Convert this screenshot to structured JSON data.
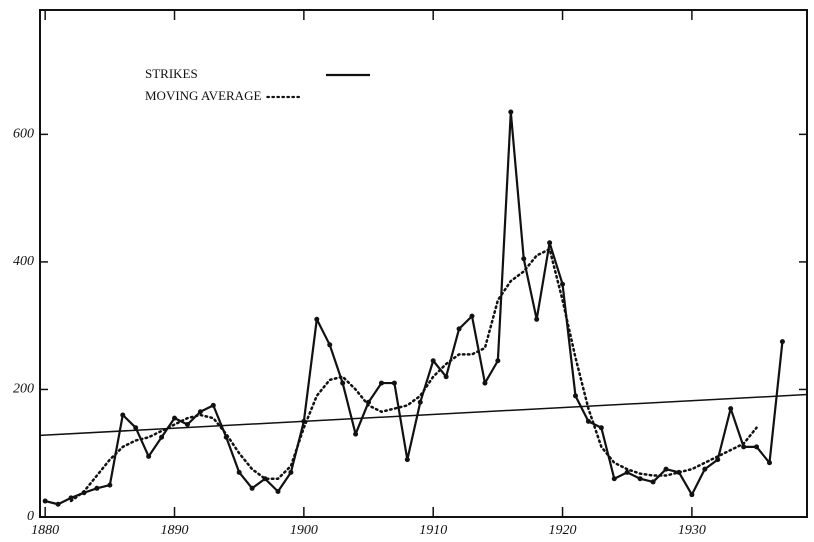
{
  "chart_data": {
    "type": "line",
    "x": [
      1880,
      1881,
      1882,
      1883,
      1884,
      1885,
      1886,
      1887,
      1888,
      1889,
      1890,
      1891,
      1892,
      1893,
      1894,
      1895,
      1896,
      1897,
      1898,
      1899,
      1900,
      1901,
      1902,
      1903,
      1904,
      1905,
      1906,
      1907,
      1908,
      1909,
      1910,
      1911,
      1912,
      1913,
      1914,
      1915,
      1916,
      1917,
      1918,
      1919,
      1920,
      1921,
      1922,
      1923,
      1924,
      1925,
      1926,
      1927,
      1928,
      1929,
      1930,
      1931,
      1932,
      1933,
      1934,
      1935,
      1936,
      1937
    ],
    "series": [
      {
        "name": "STRIKES",
        "color": "#111111",
        "style": "solid",
        "markers": true,
        "values": [
          25,
          20,
          30,
          38,
          45,
          50,
          160,
          140,
          95,
          125,
          155,
          145,
          165,
          175,
          125,
          70,
          45,
          60,
          40,
          70,
          150,
          310,
          270,
          210,
          130,
          180,
          210,
          210,
          90,
          180,
          245,
          220,
          295,
          315,
          210,
          245,
          635,
          405,
          310,
          430,
          365,
          190,
          150,
          140,
          60,
          70,
          60,
          55,
          75,
          70,
          35,
          75,
          90,
          170,
          110,
          110,
          85,
          275
        ]
      },
      {
        "name": "MOVING AVERAGE",
        "color": "#111111",
        "style": "dotted",
        "markers": false,
        "values": [
          null,
          null,
          25,
          40,
          65,
          90,
          110,
          120,
          125,
          135,
          145,
          155,
          160,
          155,
          130,
          100,
          75,
          60,
          60,
          80,
          140,
          190,
          215,
          220,
          200,
          175,
          165,
          170,
          175,
          190,
          220,
          240,
          255,
          255,
          265,
          340,
          370,
          385,
          410,
          420,
          340,
          250,
          170,
          110,
          85,
          75,
          68,
          65,
          65,
          70,
          75,
          85,
          95,
          105,
          115,
          140,
          null,
          null
        ]
      }
    ],
    "trend": {
      "x": [
        1879.6,
        1938.9
      ],
      "values": [
        128,
        192
      ]
    },
    "xlim": [
      1879.6,
      1938.9
    ],
    "xticks": [
      1880,
      1890,
      1900,
      1910,
      1920,
      1930
    ],
    "ylim": [
      0,
      795
    ],
    "yticks": [
      0,
      200,
      400,
      600
    ],
    "legend": "upper-left"
  }
}
